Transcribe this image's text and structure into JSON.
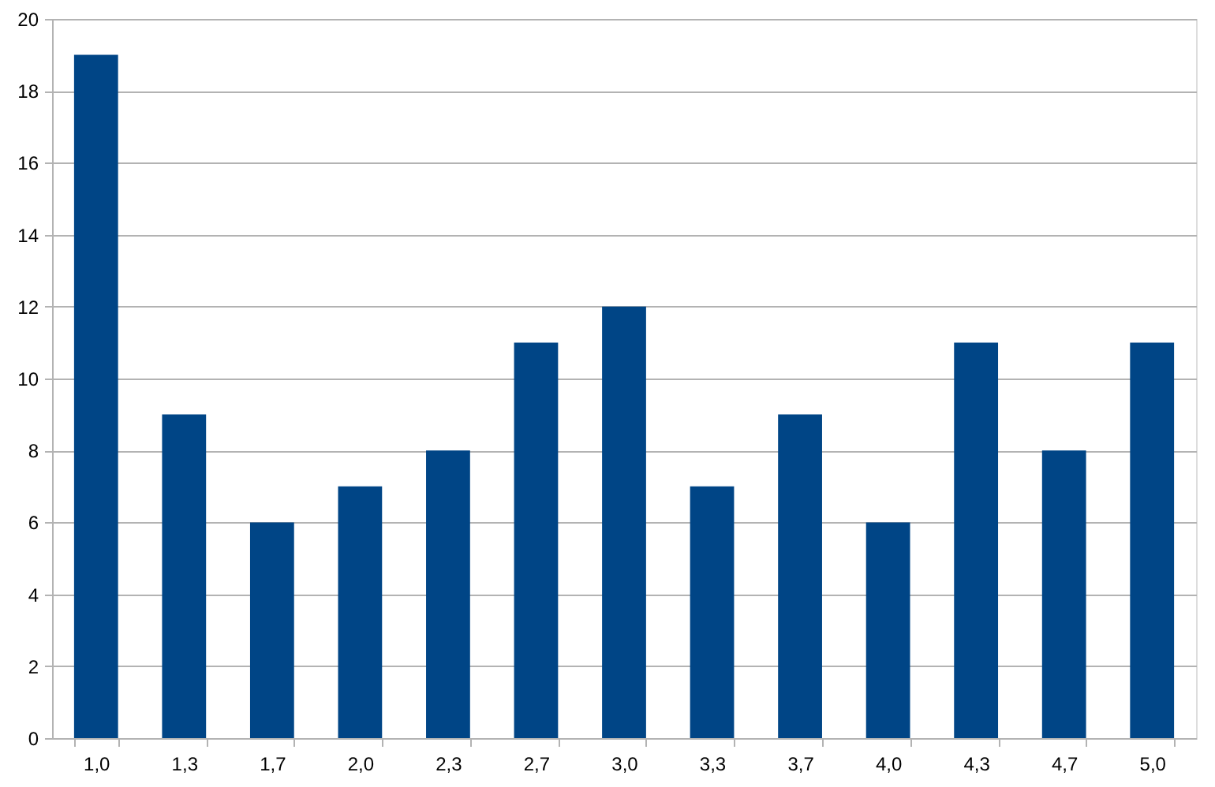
{
  "chart_data": {
    "type": "bar",
    "categories": [
      "1,0",
      "1,3",
      "1,7",
      "2,0",
      "2,3",
      "2,7",
      "3,0",
      "3,3",
      "3,7",
      "4,0",
      "4,3",
      "4,7",
      "5,0"
    ],
    "values": [
      19,
      9,
      6,
      7,
      8,
      11,
      12,
      7,
      9,
      6,
      11,
      8,
      11
    ],
    "color": "#004586",
    "ylim": [
      0,
      20
    ],
    "yticks": [
      0,
      2,
      4,
      6,
      8,
      10,
      12,
      14,
      16,
      18,
      20
    ],
    "grid": "y"
  }
}
